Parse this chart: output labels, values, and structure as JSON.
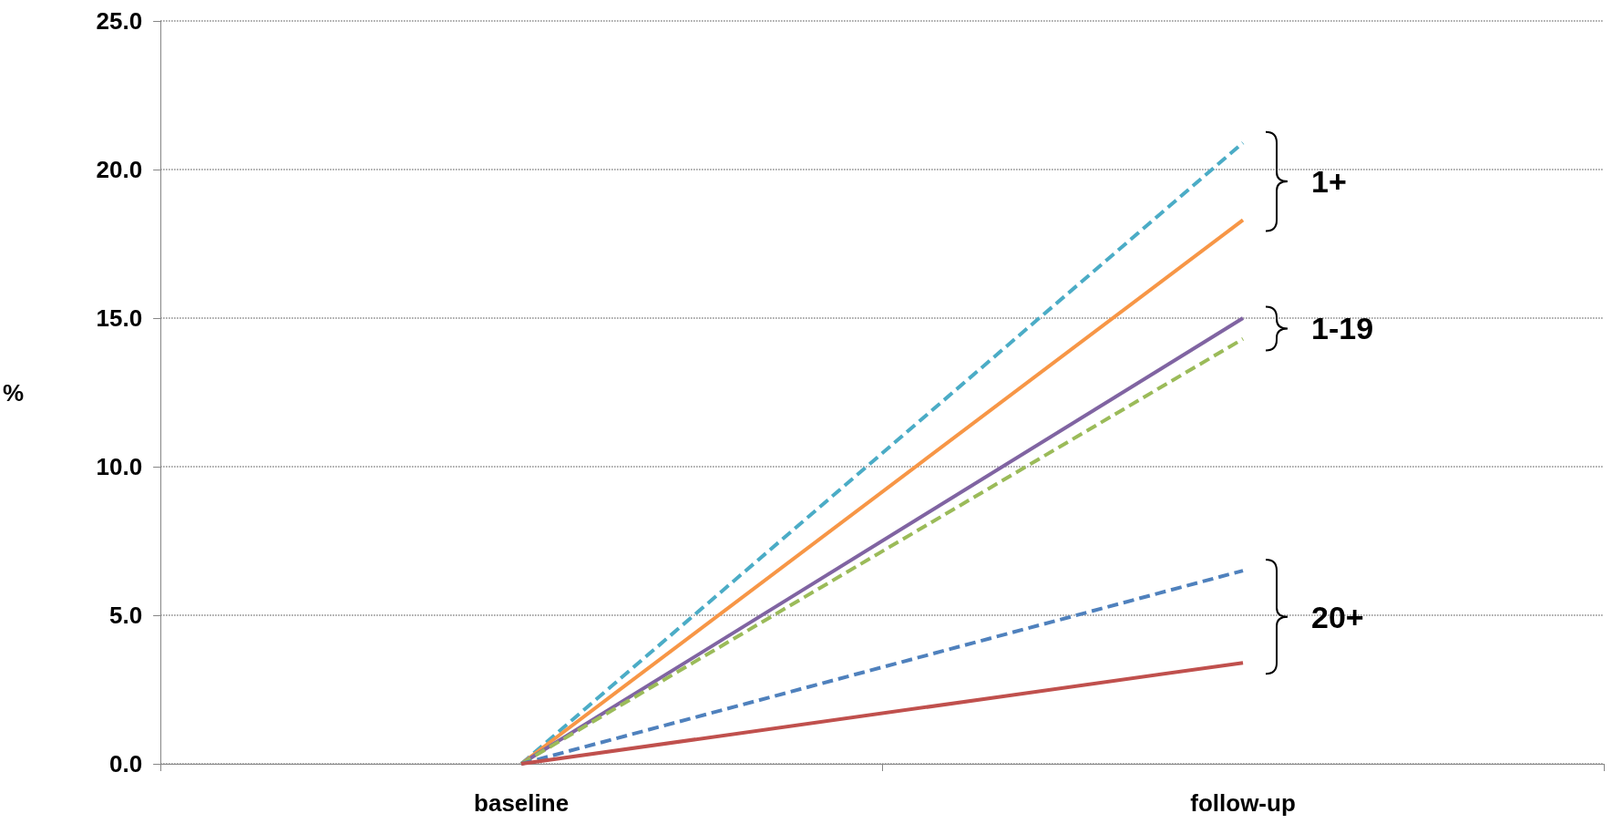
{
  "chart_data": {
    "type": "line",
    "ylabel": "%",
    "categories": [
      "baseline",
      "follow-up"
    ],
    "series": [
      {
        "color": "#4bacc6",
        "values": [
          0,
          20.9
        ],
        "line_style": "dashed"
      },
      {
        "color": "#f79646",
        "values": [
          0,
          18.3
        ],
        "line_style": "solid"
      },
      {
        "color": "#8064a2",
        "values": [
          0,
          15.0
        ],
        "line_style": "solid"
      },
      {
        "color": "#9bbb59",
        "values": [
          0,
          14.3
        ],
        "line_style": "dashed"
      },
      {
        "color": "#4f81bd",
        "values": [
          0,
          6.5
        ],
        "line_style": "dashed"
      },
      {
        "color": "#c0504d",
        "values": [
          0,
          3.4
        ],
        "line_style": "solid"
      }
    ],
    "ylim": [
      0,
      25
    ],
    "yticks": [
      {
        "value": 0,
        "label": "0.0"
      },
      {
        "value": 5,
        "label": "5.0"
      },
      {
        "value": 10,
        "label": "10.0"
      },
      {
        "value": 15,
        "label": "15.0"
      },
      {
        "value": 20,
        "label": "20.0"
      },
      {
        "value": 25,
        "label": "25.0"
      }
    ],
    "grid": "y",
    "marker": "none",
    "annotations": [
      "1+",
      "1-19",
      "20+"
    ]
  }
}
